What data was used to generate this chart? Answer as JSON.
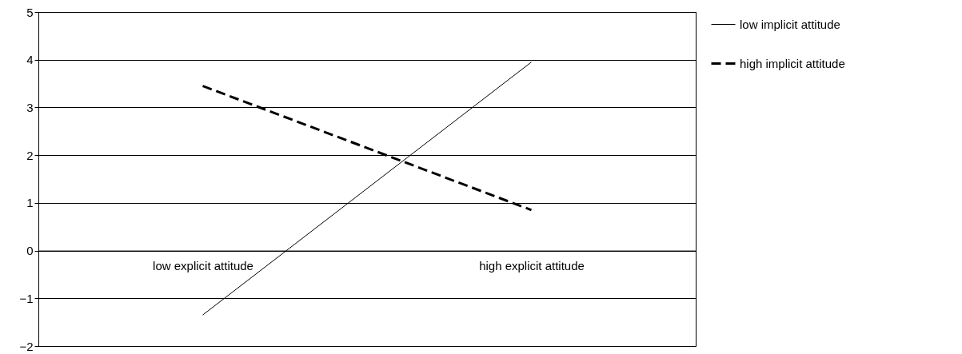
{
  "chart_data": {
    "type": "line",
    "categories": [
      "low explicit attitude",
      "high explicit attitude"
    ],
    "series": [
      {
        "name": "low implicit attitude",
        "color": "#000000",
        "line_style": "solid",
        "values": [
          -1.35,
          3.95
        ]
      },
      {
        "name": "high implicit attitude",
        "color": "#000000",
        "line_style": "dashed",
        "values": [
          3.45,
          0.85
        ]
      }
    ],
    "ylim": [
      -2,
      5
    ],
    "yticks": [
      -2,
      -1,
      0,
      1,
      2,
      3,
      4,
      5
    ],
    "grid": "y",
    "legend": "right",
    "marker": "none"
  }
}
